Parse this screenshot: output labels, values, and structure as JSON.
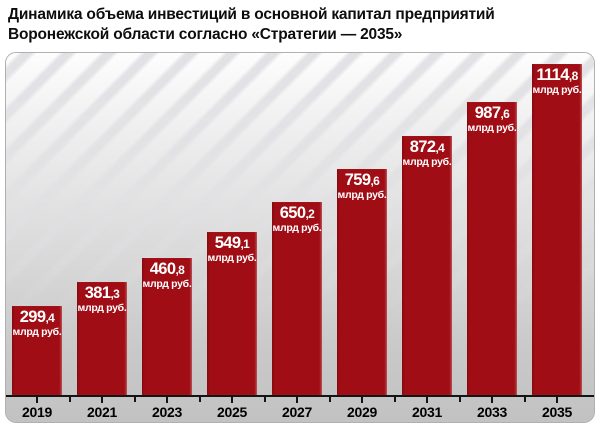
{
  "title": {
    "line1": "Динамика объема инвестиций в основной капитал предприятий",
    "line2": "Воронежской области согласно «Стратегии — 2035»"
  },
  "chart_data": {
    "type": "bar",
    "title": "Динамика объема инвестиций в основной капитал предприятий Воронежской области согласно «Стратегии — 2035»",
    "categories": [
      "2019",
      "2021",
      "2023",
      "2025",
      "2027",
      "2029",
      "2031",
      "2033",
      "2035"
    ],
    "values": [
      299.4,
      381.3,
      460.8,
      549.1,
      650.2,
      759.6,
      872.4,
      987.6,
      1114.8
    ],
    "value_labels": [
      "299,4",
      "381,3",
      "460,8",
      "549,1",
      "650,2",
      "759,6",
      "872,4",
      "987,6",
      "1114,8"
    ],
    "unit_label": "млрд руб.",
    "xlabel": "",
    "ylabel": "",
    "ylim": [
      0,
      1150
    ],
    "grid": false,
    "legend": false,
    "bar_color": "#a00d14",
    "value_label_color": "#ffffff",
    "axis_color": "#141414"
  }
}
